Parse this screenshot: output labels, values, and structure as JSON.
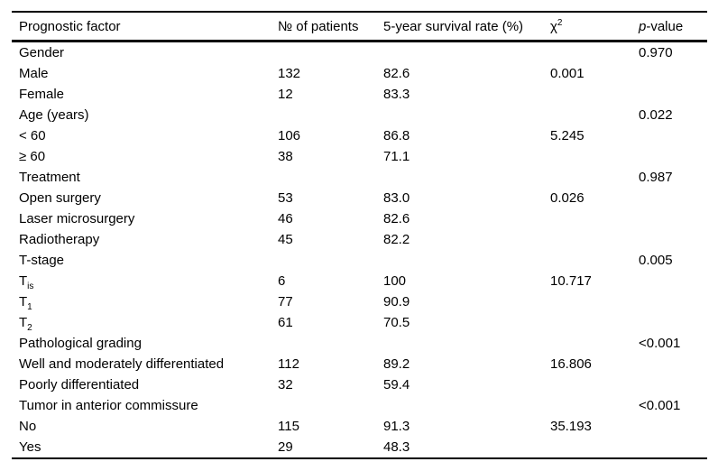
{
  "page": {
    "background": "#ffffff",
    "text_color": "#000000",
    "rule_color": "#000000"
  },
  "table": {
    "columns": {
      "factor": "Prognostic factor",
      "patients": "№ of patients",
      "survival": "5-year survival rate (%)",
      "chi_base": "χ",
      "chi_sup": "2",
      "p_italic": "p",
      "p_rest": "-value"
    },
    "rows": [
      {
        "factor": "Gender",
        "sub": "",
        "n": "",
        "rate": "",
        "chi": "",
        "p": "0.970"
      },
      {
        "factor": "Male",
        "sub": "",
        "n": "132",
        "rate": "82.6",
        "chi": "0.001",
        "p": ""
      },
      {
        "factor": "Female",
        "sub": "",
        "n": "12",
        "rate": "83.3",
        "chi": "",
        "p": ""
      },
      {
        "factor": "Age (years)",
        "sub": "",
        "n": "",
        "rate": "",
        "chi": "",
        "p": "0.022"
      },
      {
        "factor": "< 60",
        "sub": "",
        "n": "106",
        "rate": "86.8",
        "chi": "5.245",
        "p": ""
      },
      {
        "factor": "≥ 60",
        "sub": "",
        "n": "38",
        "rate": "71.1",
        "chi": "",
        "p": ""
      },
      {
        "factor": "Treatment",
        "sub": "",
        "n": "",
        "rate": "",
        "chi": "",
        "p": "0.987"
      },
      {
        "factor": "Open surgery",
        "sub": "",
        "n": "53",
        "rate": "83.0",
        "chi": "0.026",
        "p": ""
      },
      {
        "factor": "Laser microsurgery",
        "sub": "",
        "n": "46",
        "rate": "82.6",
        "chi": "",
        "p": ""
      },
      {
        "factor": "Radiotherapy",
        "sub": "",
        "n": "45",
        "rate": "82.2",
        "chi": "",
        "p": ""
      },
      {
        "factor": "T-stage",
        "sub": "",
        "n": "",
        "rate": "",
        "chi": "",
        "p": "0.005"
      },
      {
        "factor": "T",
        "sub": "is",
        "n": "6",
        "rate": "100",
        "chi": "10.717",
        "p": ""
      },
      {
        "factor": "T",
        "sub": "1",
        "n": "77",
        "rate": "90.9",
        "chi": "",
        "p": ""
      },
      {
        "factor": "T",
        "sub": "2",
        "n": "61",
        "rate": "70.5",
        "chi": "",
        "p": ""
      },
      {
        "factor": "Pathological grading",
        "sub": "",
        "n": "",
        "rate": "",
        "chi": "",
        "p": "<0.001"
      },
      {
        "factor": "Well and moderately differentiated",
        "sub": "",
        "n": "112",
        "rate": "89.2",
        "chi": "16.806",
        "p": ""
      },
      {
        "factor": "Poorly differentiated",
        "sub": "",
        "n": "32",
        "rate": "59.4",
        "chi": "",
        "p": ""
      },
      {
        "factor": "Tumor in anterior commissure",
        "sub": "",
        "n": "",
        "rate": "",
        "chi": "",
        "p": "<0.001"
      },
      {
        "factor": "No",
        "sub": "",
        "n": "115",
        "rate": "91.3",
        "chi": "35.193",
        "p": ""
      },
      {
        "factor": "Yes",
        "sub": "",
        "n": "29",
        "rate": "48.3",
        "chi": "",
        "p": ""
      }
    ]
  }
}
